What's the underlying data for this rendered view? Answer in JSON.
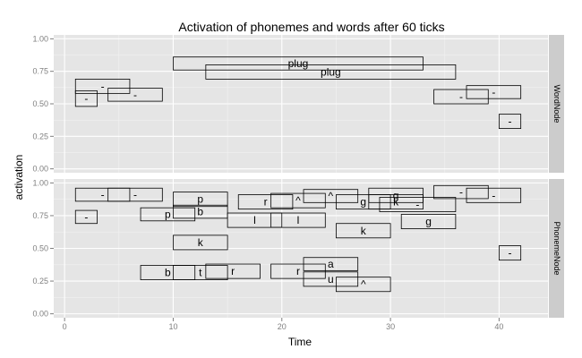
{
  "chart_data": {
    "type": "faceted-box-timeline",
    "title": "Activation of phonemes and words after 60 ticks",
    "xlabel": "Time",
    "ylabel": "activation",
    "xlim": [
      -1,
      44.5
    ],
    "ylim": [
      -0.03,
      1.03
    ],
    "x_ticks": [
      "0",
      "10",
      "20",
      "30",
      "40"
    ],
    "y_ticks": [
      "0.00",
      "0.25",
      "0.50",
      "0.75",
      "1.00"
    ],
    "grid": true,
    "panels": [
      {
        "facet": "WordNode",
        "items": [
          {
            "label": "-",
            "x0": 1,
            "x1": 3,
            "y0": 0.48,
            "y1": 0.6
          },
          {
            "label": "-",
            "x0": 1,
            "x1": 6,
            "y0": 0.58,
            "y1": 0.69
          },
          {
            "label": "-",
            "x0": 4,
            "x1": 9,
            "y0": 0.52,
            "y1": 0.62
          },
          {
            "label": "plug",
            "x0": 10,
            "x1": 33,
            "y0": 0.76,
            "y1": 0.86
          },
          {
            "label": "plug",
            "x0": 13,
            "x1": 36,
            "y0": 0.69,
            "y1": 0.8
          },
          {
            "label": "-",
            "x0": 34,
            "x1": 39,
            "y0": 0.5,
            "y1": 0.61
          },
          {
            "label": "-",
            "x0": 37,
            "x1": 42,
            "y0": 0.54,
            "y1": 0.64
          },
          {
            "label": "-",
            "x0": 40,
            "x1": 42,
            "y0": 0.31,
            "y1": 0.42
          }
        ]
      },
      {
        "facet": "PhonemeNode",
        "items": [
          {
            "label": "-",
            "x0": 1,
            "x1": 6,
            "y0": 0.86,
            "y1": 0.96
          },
          {
            "label": "-",
            "x0": 4,
            "x1": 9,
            "y0": 0.86,
            "y1": 0.96
          },
          {
            "label": "-",
            "x0": 1,
            "x1": 3,
            "y0": 0.69,
            "y1": 0.79
          },
          {
            "label": "p",
            "x0": 10,
            "x1": 15,
            "y0": 0.82,
            "y1": 0.93
          },
          {
            "label": "p",
            "x0": 7,
            "x1": 12,
            "y0": 0.71,
            "y1": 0.81
          },
          {
            "label": "b",
            "x0": 10,
            "x1": 15,
            "y0": 0.73,
            "y1": 0.83
          },
          {
            "label": "l",
            "x0": 15,
            "x1": 20,
            "y0": 0.66,
            "y1": 0.77
          },
          {
            "label": "r",
            "x0": 16,
            "x1": 21,
            "y0": 0.8,
            "y1": 0.91
          },
          {
            "label": "^",
            "x0": 19,
            "x1": 24,
            "y0": 0.81,
            "y1": 0.92
          },
          {
            "label": "l",
            "x0": 19,
            "x1": 24,
            "y0": 0.66,
            "y1": 0.77
          },
          {
            "label": "^",
            "x0": 22,
            "x1": 27,
            "y0": 0.85,
            "y1": 0.95
          },
          {
            "label": "g",
            "x0": 25,
            "x1": 30,
            "y0": 0.8,
            "y1": 0.91
          },
          {
            "label": "g",
            "x0": 28,
            "x1": 33,
            "y0": 0.85,
            "y1": 0.96
          },
          {
            "label": "k",
            "x0": 28,
            "x1": 33,
            "y0": 0.8,
            "y1": 0.91
          },
          {
            "label": "-",
            "x0": 29,
            "x1": 36,
            "y0": 0.78,
            "y1": 0.89
          },
          {
            "label": "g",
            "x0": 31,
            "x1": 36,
            "y0": 0.65,
            "y1": 0.76
          },
          {
            "label": "-",
            "x0": 34,
            "x1": 39,
            "y0": 0.88,
            "y1": 0.98
          },
          {
            "label": "-",
            "x0": 37,
            "x1": 42,
            "y0": 0.85,
            "y1": 0.96
          },
          {
            "label": "k",
            "x0": 25,
            "x1": 30,
            "y0": 0.58,
            "y1": 0.69
          },
          {
            "label": "k",
            "x0": 10,
            "x1": 15,
            "y0": 0.49,
            "y1": 0.6
          },
          {
            "label": "-",
            "x0": 40,
            "x1": 42,
            "y0": 0.41,
            "y1": 0.52
          },
          {
            "label": "b",
            "x0": 7,
            "x1": 12,
            "y0": 0.26,
            "y1": 0.37
          },
          {
            "label": "t",
            "x0": 10,
            "x1": 15,
            "y0": 0.26,
            "y1": 0.37
          },
          {
            "label": "r",
            "x0": 13,
            "x1": 18,
            "y0": 0.27,
            "y1": 0.38
          },
          {
            "label": "r",
            "x0": 19,
            "x1": 24,
            "y0": 0.27,
            "y1": 0.38
          },
          {
            "label": "a",
            "x0": 22,
            "x1": 27,
            "y0": 0.33,
            "y1": 0.43
          },
          {
            "label": "u",
            "x0": 22,
            "x1": 27,
            "y0": 0.21,
            "y1": 0.32
          },
          {
            "label": "^",
            "x0": 25,
            "x1": 30,
            "y0": 0.17,
            "y1": 0.28
          }
        ]
      }
    ]
  }
}
